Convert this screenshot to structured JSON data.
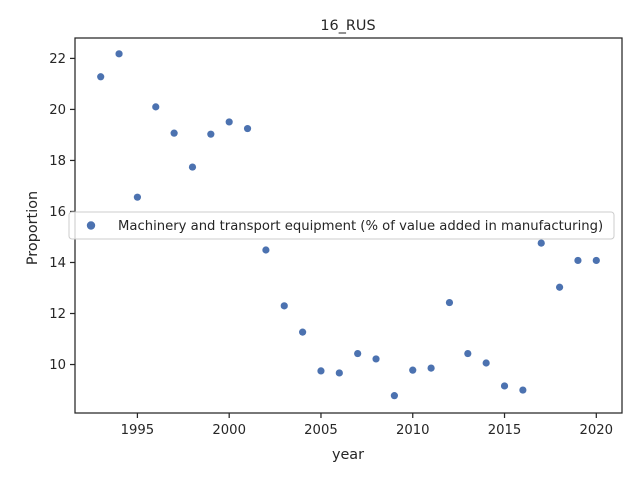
{
  "chart_data": {
    "type": "scatter",
    "title": "16_RUS",
    "xlabel": "year",
    "ylabel": "Proportion",
    "xlim": [
      1991.6,
      2021.4
    ],
    "ylim": [
      8.1,
      22.8
    ],
    "xticks": [
      1995,
      2000,
      2005,
      2010,
      2015,
      2020
    ],
    "yticks": [
      10,
      12,
      14,
      16,
      18,
      20,
      22
    ],
    "grid": false,
    "legend_position": "center-right",
    "series": [
      {
        "name": "Machinery and transport equipment (% of value added in manufacturing)",
        "color": "#4c72b0",
        "points": [
          {
            "x": 1993,
            "y": 21.28
          },
          {
            "x": 1994,
            "y": 22.18
          },
          {
            "x": 1995,
            "y": 16.56
          },
          {
            "x": 1996,
            "y": 20.1
          },
          {
            "x": 1997,
            "y": 19.07
          },
          {
            "x": 1998,
            "y": 17.74
          },
          {
            "x": 1999,
            "y": 19.03
          },
          {
            "x": 2000,
            "y": 19.51
          },
          {
            "x": 2001,
            "y": 19.25
          },
          {
            "x": 2002,
            "y": 14.49
          },
          {
            "x": 2003,
            "y": 12.3
          },
          {
            "x": 2004,
            "y": 11.27
          },
          {
            "x": 2005,
            "y": 9.75
          },
          {
            "x": 2006,
            "y": 9.67
          },
          {
            "x": 2007,
            "y": 10.43
          },
          {
            "x": 2008,
            "y": 10.22
          },
          {
            "x": 2009,
            "y": 8.78
          },
          {
            "x": 2010,
            "y": 9.78
          },
          {
            "x": 2011,
            "y": 9.86
          },
          {
            "x": 2012,
            "y": 12.43
          },
          {
            "x": 2013,
            "y": 10.43
          },
          {
            "x": 2014,
            "y": 10.06
          },
          {
            "x": 2015,
            "y": 9.16
          },
          {
            "x": 2016,
            "y": 9.0
          },
          {
            "x": 2017,
            "y": 14.76
          },
          {
            "x": 2018,
            "y": 13.03
          },
          {
            "x": 2019,
            "y": 14.08
          },
          {
            "x": 2020,
            "y": 14.08
          }
        ]
      }
    ]
  }
}
